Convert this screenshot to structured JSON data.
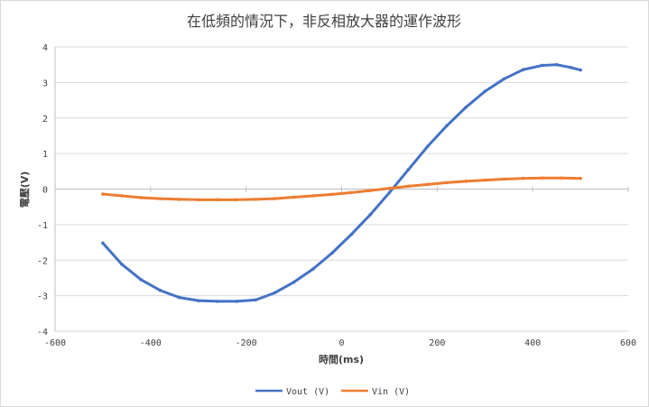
{
  "chart_data": {
    "type": "scatter",
    "title": "在低頻的情況下，非反相放大器的運作波形",
    "xlabel": "時間(ms)",
    "ylabel": "電壓(V)",
    "xlim": [
      -600,
      600
    ],
    "ylim": [
      -4,
      4
    ],
    "x_ticks": [
      "-600",
      "-400",
      "-200",
      "0",
      "200",
      "400",
      "600"
    ],
    "y_ticks": [
      "-4",
      "-3",
      "-2",
      "-1",
      "0",
      "1",
      "2",
      "3",
      "4"
    ],
    "grid": "horizontal",
    "legend_position": "bottom",
    "series": [
      {
        "name": "Vout (V)",
        "color": "#4472c4",
        "x": [
          -500,
          -460,
          -420,
          -380,
          -340,
          -300,
          -260,
          -220,
          -180,
          -140,
          -100,
          -60,
          -20,
          20,
          60,
          100,
          140,
          180,
          220,
          260,
          300,
          340,
          380,
          420,
          450,
          480,
          500
        ],
        "values": [
          -1.52,
          -2.12,
          -2.55,
          -2.85,
          -3.05,
          -3.14,
          -3.16,
          -3.16,
          -3.12,
          -2.92,
          -2.62,
          -2.25,
          -1.8,
          -1.28,
          -0.72,
          -0.1,
          0.55,
          1.2,
          1.78,
          2.3,
          2.75,
          3.1,
          3.36,
          3.48,
          3.5,
          3.42,
          3.35
        ]
      },
      {
        "name": "Vin (V)",
        "color": "#ed7d31",
        "x": [
          -500,
          -460,
          -420,
          -380,
          -340,
          -300,
          -260,
          -220,
          -180,
          -140,
          -100,
          -60,
          -20,
          20,
          60,
          100,
          140,
          180,
          220,
          260,
          300,
          340,
          380,
          420,
          460,
          500
        ],
        "values": [
          -0.14,
          -0.19,
          -0.24,
          -0.27,
          -0.29,
          -0.3,
          -0.3,
          -0.3,
          -0.29,
          -0.27,
          -0.23,
          -0.19,
          -0.15,
          -0.1,
          -0.04,
          0.02,
          0.08,
          0.13,
          0.18,
          0.22,
          0.25,
          0.28,
          0.3,
          0.31,
          0.31,
          0.3
        ]
      }
    ]
  }
}
